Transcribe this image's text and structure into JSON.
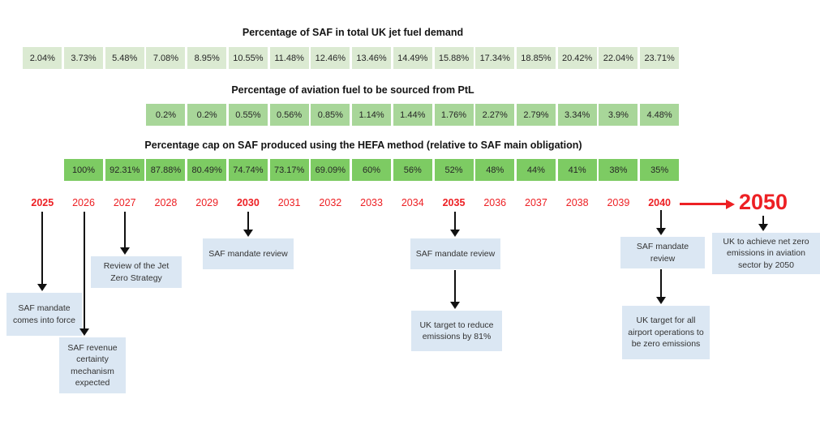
{
  "colors": {
    "row1_green": "#dbead2",
    "row2_green": "#a8d699",
    "row3_green": "#7dcb63",
    "note_blue": "#dbe7f3",
    "red": "#ed2024",
    "arrow_black": "#111111"
  },
  "tables": [
    {
      "title": "Percentage of SAF in total UK jet fuel demand",
      "start_year": 2025,
      "values": [
        "2.04%",
        "3.73%",
        "5.48%",
        "7.08%",
        "8.95%",
        "10.55%",
        "11.48%",
        "12.46%",
        "13.46%",
        "14.49%",
        "15.88%",
        "17.34%",
        "18.85%",
        "20.42%",
        "22.04%",
        "23.71%"
      ]
    },
    {
      "title": "Percentage of aviation fuel to be sourced from PtL",
      "start_year": 2028,
      "values": [
        "0.2%",
        "0.2%",
        "0.55%",
        "0.56%",
        "0.85%",
        "1.14%",
        "1.44%",
        "1.76%",
        "2.27%",
        "2.79%",
        "3.34%",
        "3.9%",
        "4.48%"
      ]
    },
    {
      "title": "Percentage cap on SAF produced using the HEFA method (relative to SAF main obligation)",
      "start_year": 2026,
      "values": [
        "100%",
        "92.31%",
        "87.88%",
        "80.49%",
        "74.74%",
        "73.17%",
        "69.09%",
        "60%",
        "56%",
        "52%",
        "48%",
        "44%",
        "41%",
        "38%",
        "35%"
      ]
    }
  ],
  "timeline": {
    "years": [
      {
        "label": "2025",
        "bold": true
      },
      {
        "label": "2026",
        "bold": false
      },
      {
        "label": "2027",
        "bold": false
      },
      {
        "label": "2028",
        "bold": false
      },
      {
        "label": "2029",
        "bold": false
      },
      {
        "label": "2030",
        "bold": true
      },
      {
        "label": "2031",
        "bold": false
      },
      {
        "label": "2032",
        "bold": false
      },
      {
        "label": "2033",
        "bold": false
      },
      {
        "label": "2034",
        "bold": false
      },
      {
        "label": "2035",
        "bold": true
      },
      {
        "label": "2036",
        "bold": false
      },
      {
        "label": "2037",
        "bold": false
      },
      {
        "label": "2038",
        "bold": false
      },
      {
        "label": "2039",
        "bold": false
      },
      {
        "label": "2040",
        "bold": true
      }
    ],
    "future_year": "2050"
  },
  "annotations": [
    {
      "id": "a2025",
      "anchor_year": "2025",
      "text": "SAF mandate comes into force"
    },
    {
      "id": "a2026",
      "anchor_year": "2026",
      "text": "SAF revenue certainty mechanism expected"
    },
    {
      "id": "a2027",
      "anchor_year": "2027",
      "text": "Review of the Jet Zero Strategy"
    },
    {
      "id": "a2030",
      "anchor_year": "2030",
      "text": "SAF mandate review"
    },
    {
      "id": "a2035_review",
      "anchor_year": "2035",
      "text": "SAF mandate review"
    },
    {
      "id": "a2035_target",
      "anchor_year": "2035",
      "text": "UK target to reduce emissions by 81%"
    },
    {
      "id": "a2040_review",
      "anchor_year": "2040",
      "text": "SAF mandate review"
    },
    {
      "id": "a2040_target",
      "anchor_year": "2040",
      "text": "UK target for all airport operations to be zero emissions"
    },
    {
      "id": "a2050",
      "anchor_year": "2050",
      "text": "UK to achieve net zero emissions in aviation sector by 2050"
    }
  ]
}
